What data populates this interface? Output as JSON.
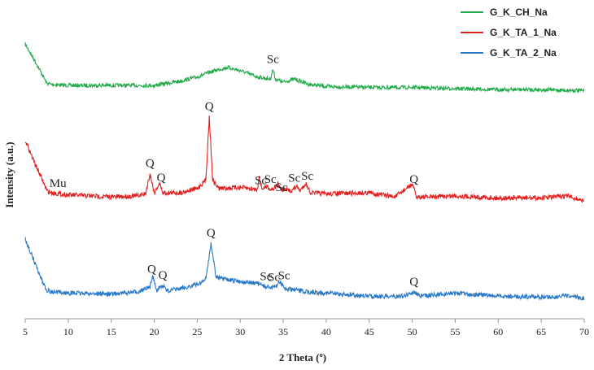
{
  "chart_data": {
    "type": "line",
    "xlabel": "2 Theta (º)",
    "ylabel": "Intensity (a.u.)",
    "xlim": [
      5,
      70
    ],
    "xticks": [
      5,
      10,
      15,
      20,
      25,
      30,
      35,
      40,
      45,
      50,
      55,
      60,
      65,
      70
    ],
    "grid": false,
    "legend_position": "top-right",
    "series": [
      {
        "name": "G_K_CH_Na",
        "color": "#22aa4a",
        "x": [
          5,
          6,
          7,
          7.5,
          8,
          10,
          15,
          20,
          23,
          25,
          27,
          28.5,
          30,
          32,
          33.5,
          33.8,
          34.1,
          35,
          36.3,
          38,
          40,
          45,
          50,
          55,
          60,
          65,
          70
        ],
        "y": [
          49,
          35,
          20,
          12,
          11,
          10,
          10,
          10,
          14,
          18,
          24,
          27,
          24,
          18,
          16,
          25,
          16,
          13,
          16,
          11,
          9,
          8,
          8,
          7,
          6,
          6,
          5
        ]
      },
      {
        "name": "G_K_TA_1_Na",
        "color": "#e02020",
        "x": [
          5,
          6,
          7,
          7.5,
          8,
          10,
          15,
          18,
          19,
          19.5,
          20,
          20.6,
          21,
          23,
          25,
          26,
          26.4,
          26.8,
          27.5,
          30,
          32,
          32.2,
          32.5,
          33.2,
          33.5,
          34,
          34.4,
          34.8,
          36,
          36.5,
          37,
          37.6,
          38.2,
          40,
          45,
          48,
          50,
          50.5,
          52,
          55,
          60,
          65,
          68,
          70
        ],
        "y": [
          60,
          40,
          22,
          12,
          10,
          8,
          6,
          7,
          9,
          28,
          10,
          19,
          10,
          10,
          14,
          22,
          82,
          22,
          14,
          15,
          13,
          26,
          14,
          16,
          13,
          15,
          18,
          13,
          12,
          16,
          12,
          19,
          10,
          9,
          10,
          6,
          18,
          6,
          6,
          7,
          5,
          5,
          7,
          2
        ]
      },
      {
        "name": "G_K_TA_2_Na",
        "color": "#2878c8",
        "x": [
          5,
          5.5,
          6,
          7,
          7.5,
          8,
          10,
          15,
          18,
          19.5,
          19.8,
          20.3,
          21,
          21.5,
          23,
          25,
          26,
          26.6,
          27.2,
          28,
          30,
          32,
          33,
          34,
          34.6,
          35.2,
          36,
          38,
          40,
          45,
          49,
          50.2,
          51,
          55,
          60,
          65,
          68,
          70
        ],
        "y": [
          60,
          50,
          40,
          20,
          12,
          10,
          9,
          8,
          10,
          14,
          26,
          12,
          16,
          11,
          13,
          17,
          22,
          56,
          24,
          22,
          20,
          18,
          15,
          14,
          20,
          13,
          12,
          10,
          9,
          6,
          6,
          10,
          6,
          9,
          6,
          5,
          6,
          4
        ]
      }
    ],
    "annotations": [
      {
        "text": "Sc",
        "x": 33.8,
        "series": 0
      },
      {
        "text": "Mu",
        "x": 8.8,
        "series": 1
      },
      {
        "text": "Q",
        "x": 19.5,
        "series": 1
      },
      {
        "text": "Q",
        "x": 20.8,
        "series": 1
      },
      {
        "text": "Q",
        "x": 26.4,
        "series": 1
      },
      {
        "text": "Sc",
        "x": 32.4,
        "series": 1
      },
      {
        "text": "Sc",
        "x": 33.5,
        "series": 1
      },
      {
        "text": "Sc",
        "x": 34.8,
        "series": 1
      },
      {
        "text": "Sc",
        "x": 36.3,
        "series": 1
      },
      {
        "text": "Sc",
        "x": 37.8,
        "series": 1
      },
      {
        "text": "Q",
        "x": 50.2,
        "series": 1
      },
      {
        "text": "Q",
        "x": 19.7,
        "series": 2
      },
      {
        "text": "Q",
        "x": 21.0,
        "series": 2
      },
      {
        "text": "Q",
        "x": 26.6,
        "series": 2
      },
      {
        "text": "Sc",
        "x": 33.0,
        "series": 2
      },
      {
        "text": "Sc",
        "x": 33.9,
        "series": 2
      },
      {
        "text": "Sc",
        "x": 35.1,
        "series": 2
      },
      {
        "text": "Q",
        "x": 50.2,
        "series": 2
      }
    ]
  }
}
